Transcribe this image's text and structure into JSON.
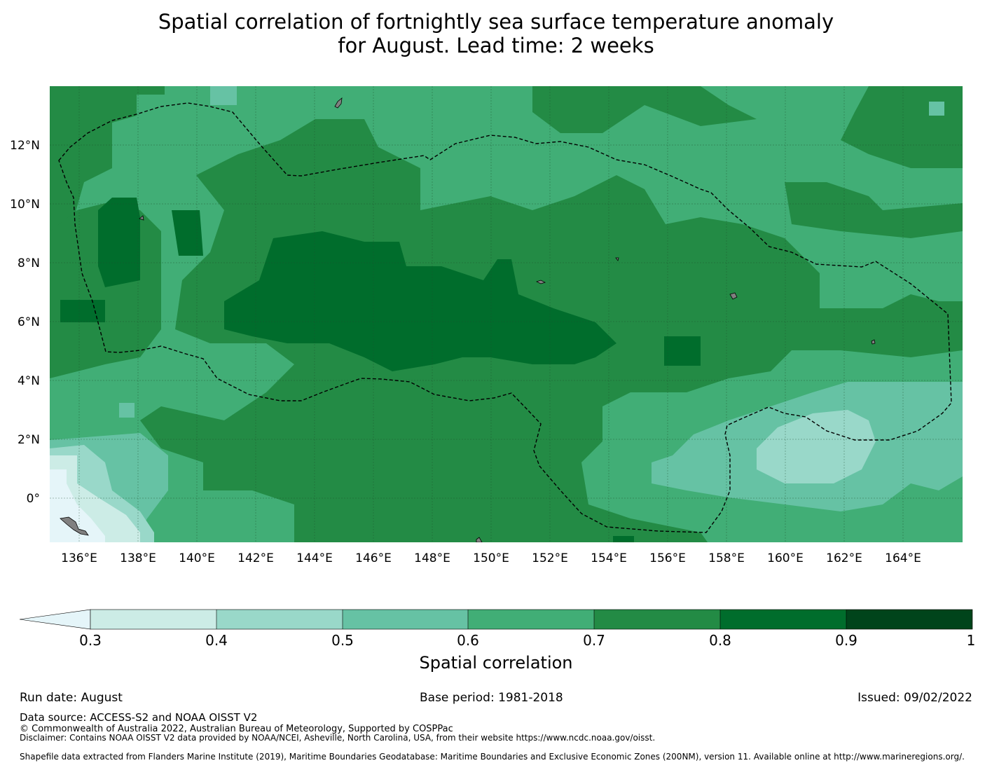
{
  "title": {
    "line1": "Spatial correlation of fortnightly sea surface temperature anomaly",
    "line2": "for August. Lead time: 2 weeks"
  },
  "map": {
    "lat_labels": [
      "12°N",
      "10°N",
      "8°N",
      "6°N",
      "4°N",
      "2°N",
      "0°"
    ],
    "lon_labels": [
      "136°E",
      "138°E",
      "140°E",
      "142°E",
      "144°E",
      "146°E",
      "148°E",
      "150°E",
      "152°E",
      "154°E",
      "156°E",
      "158°E",
      "160°E",
      "162°E",
      "164°E"
    ],
    "extent": {
      "lon_min": 135.0,
      "lon_max": 166.0,
      "lat_min": -1.5,
      "lat_max": 14.0
    }
  },
  "colorbar": {
    "ticks": [
      "0.3",
      "0.4",
      "0.5",
      "0.6",
      "0.7",
      "0.8",
      "0.9",
      "1"
    ],
    "colors": [
      "#e5f5f9",
      "#ccece6",
      "#99d8c9",
      "#66c2a4",
      "#41ae76",
      "#238b45",
      "#006d2c",
      "#00441b"
    ],
    "label": "Spatial correlation"
  },
  "footer": {
    "run_date": "Run date: August",
    "base_period": "Base period: 1981-2018",
    "issued": "Issued: 09/02/2022",
    "data_source": "Data source: ACCESS-S2 and NOAA OISST V2",
    "copyright": "© Commonwealth of Australia 2022, Australian Bureau of Meteorology, Supported by COSPPac",
    "disclaimer": "Disclaimer: Contains NOAA OISST V2 data provided by NOAA/NCEI, Asheville, North Carolina, USA, from their website https://www.ncdc.noaa.gov/oisst.",
    "shapefile": "Shapefile data extracted from Flanders Marine Institute (2019), Maritime Boundaries Geodatabase: Maritime Boundaries and Exclusive Economic Zones (200NM), version 11. Available online at http://www.marineregions.org/."
  },
  "colors": {
    "land": "#808080",
    "boundary": "#000000"
  }
}
